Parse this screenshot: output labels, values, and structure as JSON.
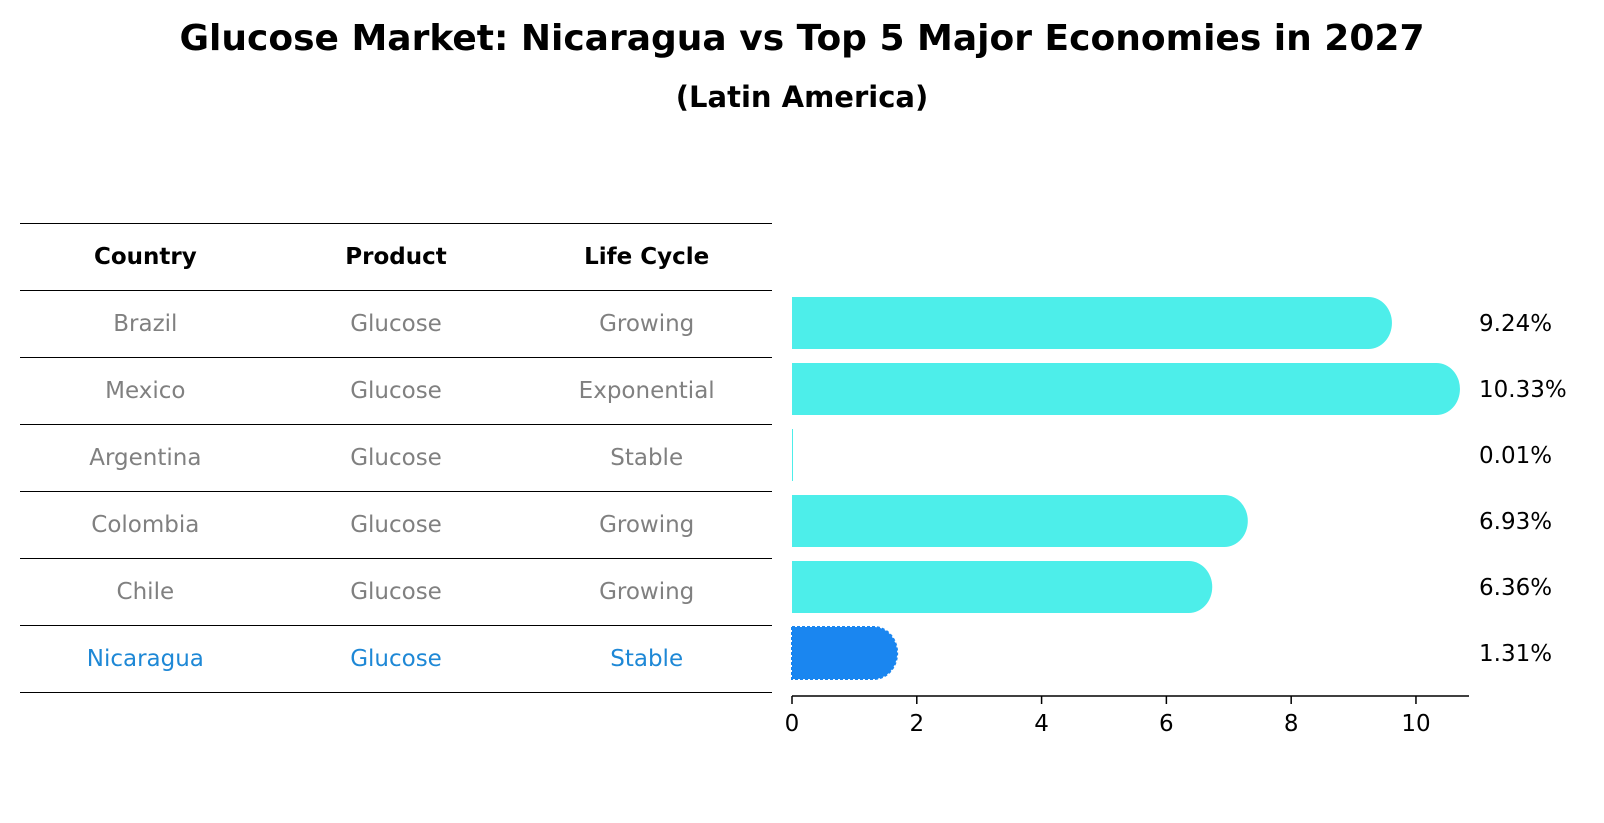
{
  "title": "Glucose Market: Nicaragua vs Top 5 Major Economies in 2027",
  "subtitle": "(Latin America)",
  "colors": {
    "bar": "#4deeea",
    "highlight_bar": "#1a86f0",
    "muted_text": "#808080",
    "highlight_text": "#1e88d6"
  },
  "table": {
    "headers": [
      "Country",
      "Product",
      "Life Cycle"
    ],
    "rows": [
      {
        "country": "Brazil",
        "product": "Glucose",
        "life_cycle": "Growing"
      },
      {
        "country": "Mexico",
        "product": "Glucose",
        "life_cycle": "Exponential"
      },
      {
        "country": "Argentina",
        "product": "Glucose",
        "life_cycle": "Stable"
      },
      {
        "country": "Colombia",
        "product": "Glucose",
        "life_cycle": "Growing"
      },
      {
        "country": "Chile",
        "product": "Glucose",
        "life_cycle": "Growing"
      },
      {
        "country": "Nicaragua",
        "product": "Glucose",
        "life_cycle": "Stable"
      }
    ]
  },
  "chart_data": {
    "type": "bar",
    "orientation": "horizontal",
    "categories": [
      "Brazil",
      "Mexico",
      "Argentina",
      "Colombia",
      "Chile",
      "Nicaragua"
    ],
    "values": [
      9.24,
      10.33,
      0.01,
      6.93,
      6.36,
      1.31
    ],
    "value_labels": [
      "9.24%",
      "10.33%",
      "0.01%",
      "6.93%",
      "6.36%",
      "1.31%"
    ],
    "highlight": "Nicaragua",
    "xlim": [
      0,
      10.85
    ],
    "xticks": [
      0,
      2,
      4,
      6,
      8,
      10
    ],
    "grid": false,
    "xlabel": "",
    "ylabel": ""
  }
}
